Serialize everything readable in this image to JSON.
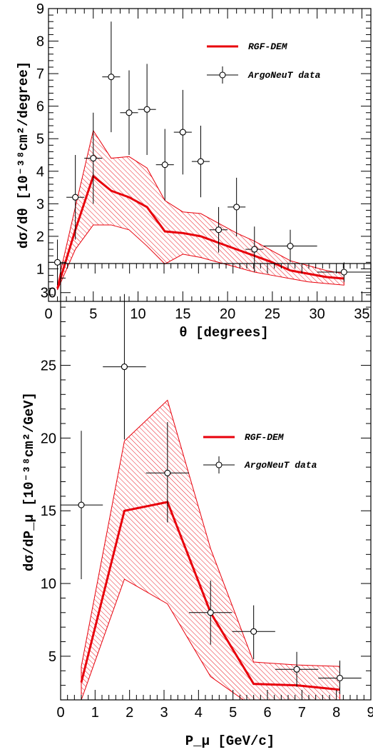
{
  "chart_data": [
    {
      "type": "line",
      "xlabel": "θ  [degrees]",
      "ylabel": "dσ/dθ  [10⁻³⁸cm²/degree]",
      "xlim": [
        0,
        36
      ],
      "ylim": [
        0,
        9
      ],
      "x_ticks": [
        "0",
        "5",
        "10",
        "15",
        "20",
        "25",
        "30",
        "35"
      ],
      "y_ticks": [
        "1",
        "2",
        "3",
        "4",
        "5",
        "6",
        "7",
        "8",
        "9"
      ],
      "legend_position": "top-right",
      "colors": {
        "model": "#e8000b",
        "data": "#000000"
      },
      "legend": {
        "model": "RGF-DEM",
        "data": "ArgoNeuT data"
      },
      "model": {
        "name": "RGF-DEM",
        "x": [
          1,
          3,
          5,
          7,
          9,
          11,
          13,
          15,
          17,
          19,
          21,
          23,
          25,
          27,
          29,
          31,
          33
        ],
        "y": [
          0.4,
          2.2,
          3.85,
          3.4,
          3.2,
          2.9,
          2.15,
          2.1,
          2.0,
          1.8,
          1.6,
          1.4,
          1.2,
          0.95,
          0.85,
          0.75,
          0.7
        ],
        "band_low": [
          0.35,
          1.6,
          2.35,
          2.35,
          2.2,
          1.7,
          1.15,
          1.45,
          1.35,
          1.2,
          1.05,
          0.9,
          0.8,
          0.7,
          0.6,
          0.55,
          0.5
        ],
        "band_high": [
          0.5,
          2.9,
          5.25,
          4.4,
          4.45,
          4.1,
          3.1,
          2.75,
          2.7,
          2.4,
          2.1,
          1.85,
          1.55,
          1.25,
          1.1,
          0.95,
          0.85
        ]
      },
      "data": {
        "name": "ArgoNeuT data",
        "points": [
          {
            "x": 1,
            "y": 1.2,
            "xerr": 1,
            "ylo": 0.5,
            "yhi": 1.9
          },
          {
            "x": 3,
            "y": 3.2,
            "xerr": 1,
            "ylo": 1.9,
            "yhi": 4.5
          },
          {
            "x": 5,
            "y": 4.4,
            "xerr": 1,
            "ylo": 3.0,
            "yhi": 5.8
          },
          {
            "x": 7,
            "y": 6.9,
            "xerr": 1,
            "ylo": 5.2,
            "yhi": 8.6
          },
          {
            "x": 9,
            "y": 5.8,
            "xerr": 1,
            "ylo": 4.5,
            "yhi": 7.1
          },
          {
            "x": 11,
            "y": 5.9,
            "xerr": 1,
            "ylo": 4.5,
            "yhi": 7.3
          },
          {
            "x": 13,
            "y": 4.2,
            "xerr": 1,
            "ylo": 3.1,
            "yhi": 5.3
          },
          {
            "x": 15,
            "y": 5.2,
            "xerr": 1,
            "ylo": 3.9,
            "yhi": 6.5
          },
          {
            "x": 17,
            "y": 4.3,
            "xerr": 1,
            "ylo": 3.2,
            "yhi": 5.4
          },
          {
            "x": 19,
            "y": 2.2,
            "xerr": 1,
            "ylo": 1.5,
            "yhi": 2.9
          },
          {
            "x": 21,
            "y": 2.9,
            "xerr": 1,
            "ylo": 2.0,
            "yhi": 3.8
          },
          {
            "x": 23,
            "y": 1.6,
            "xerr": 1,
            "ylo": 0.9,
            "yhi": 2.3
          },
          {
            "x": 27,
            "y": 1.7,
            "xerr": 3,
            "ylo": 1.2,
            "yhi": 2.2
          },
          {
            "x": 33,
            "y": 0.9,
            "xerr": 3,
            "ylo": 0.6,
            "yhi": 1.2
          }
        ]
      }
    },
    {
      "type": "line",
      "xlabel": "P_μ  [GeV/c]",
      "ylabel": "dσ/dP_μ  [10⁻³⁸cm²/GeV]",
      "xlim": [
        0,
        9
      ],
      "ylim": [
        2,
        32
      ],
      "x_ticks": [
        "0",
        "1",
        "2",
        "3",
        "4",
        "5",
        "6",
        "7",
        "8",
        "9"
      ],
      "y_ticks": [
        "5",
        "10",
        "15",
        "20",
        "25",
        "30"
      ],
      "legend_position": "top-right",
      "colors": {
        "model": "#e8000b",
        "data": "#000000"
      },
      "legend": {
        "model": "RGF-DEM",
        "data": "ArgoNeuT data"
      },
      "model": {
        "name": "RGF-DEM",
        "x": [
          0.6,
          1.85,
          3.1,
          4.35,
          5.6,
          6.85,
          8.1
        ],
        "y": [
          3.2,
          15.0,
          15.6,
          8.0,
          3.1,
          3.0,
          2.7
        ],
        "band_low": [
          2.0,
          10.3,
          8.6,
          3.6,
          1.5,
          1.5,
          1.3
        ],
        "band_high": [
          4.3,
          19.8,
          22.6,
          12.4,
          4.6,
          4.4,
          4.3
        ]
      },
      "data": {
        "name": "ArgoNeuT data",
        "points": [
          {
            "x": 0.6,
            "y": 15.4,
            "xerr": 0.625,
            "ylo": 10.3,
            "yhi": 20.5
          },
          {
            "x": 1.85,
            "y": 24.9,
            "xerr": 0.625,
            "ylo": 19.9,
            "yhi": 29.9
          },
          {
            "x": 3.1,
            "y": 17.6,
            "xerr": 0.625,
            "ylo": 14.2,
            "yhi": 21.1
          },
          {
            "x": 4.35,
            "y": 8.0,
            "xerr": 0.625,
            "ylo": 5.8,
            "yhi": 10.2
          },
          {
            "x": 5.6,
            "y": 6.7,
            "xerr": 0.625,
            "ylo": 4.8,
            "yhi": 8.5
          },
          {
            "x": 6.85,
            "y": 4.1,
            "xerr": 0.625,
            "ylo": 2.9,
            "yhi": 5.3
          },
          {
            "x": 8.1,
            "y": 3.5,
            "xerr": 0.625,
            "ylo": 2.4,
            "yhi": 4.7
          }
        ]
      }
    }
  ]
}
